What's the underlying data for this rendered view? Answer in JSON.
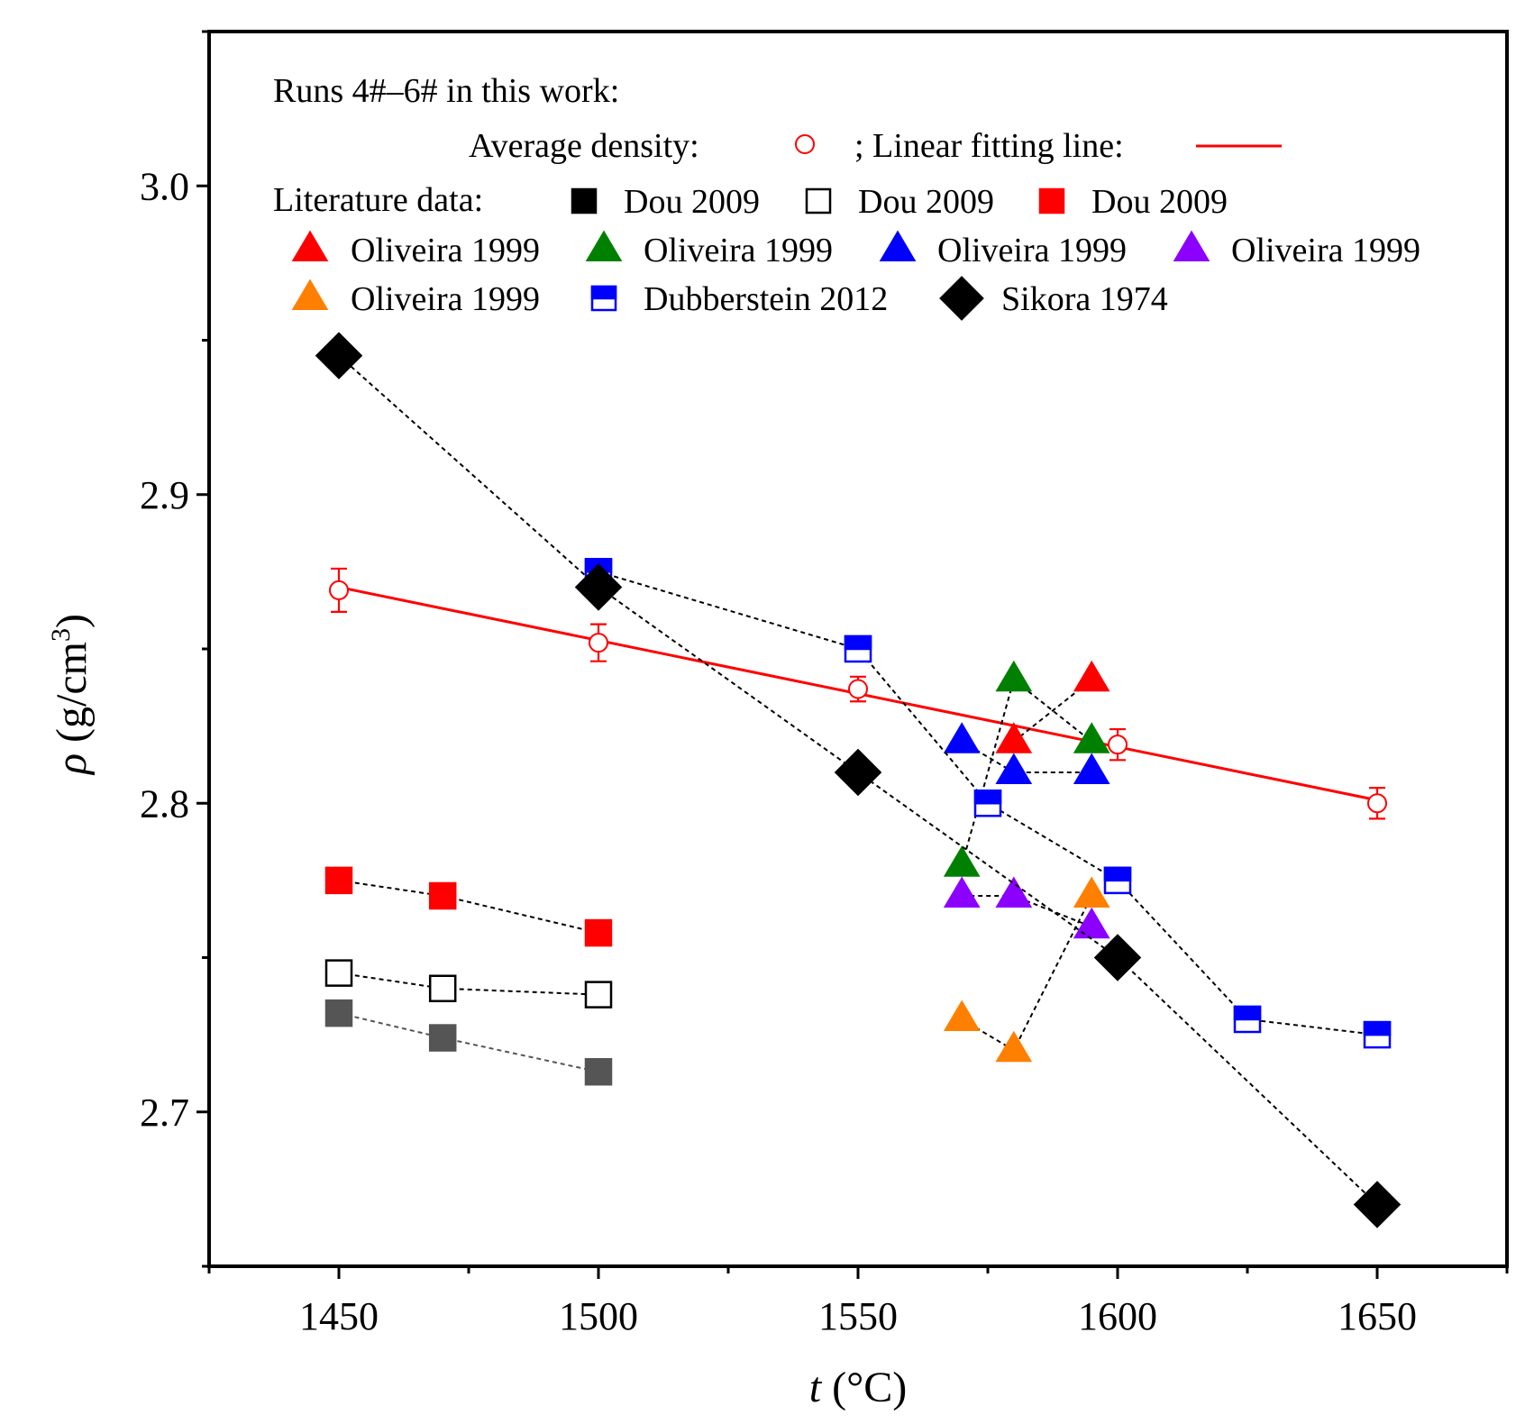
{
  "chart_data": {
    "type": "scatter",
    "xlabel": {
      "italic": "t",
      "rest": " (°C)"
    },
    "ylabel": {
      "italic": "ρ",
      "rest": " (g/cm",
      "sup": "3",
      "close": ")"
    },
    "xlim": [
      1425,
      1675
    ],
    "ylim": [
      2.65,
      3.05
    ],
    "xticks": [
      1450,
      1500,
      1550,
      1600,
      1650
    ],
    "xtick_labels": [
      "1450",
      "1500",
      "1550",
      "1600",
      "1650"
    ],
    "yticks": [
      2.7,
      2.8,
      2.9,
      3.0
    ],
    "ytick_labels": [
      "2.7",
      "2.8",
      "2.9",
      "3.0"
    ],
    "legend": {
      "header": "Runs 4#–6# in this work:",
      "avg_label": "Average density:",
      "fit_label": "; Linear fitting line:",
      "lit_label": "Literature data:",
      "entries": [
        {
          "label": "Dou 2009",
          "marker": "square",
          "color": "#000000",
          "fill": "filled"
        },
        {
          "label": "Dou 2009",
          "marker": "square",
          "color": "#000000",
          "fill": "open"
        },
        {
          "label": "Dou 2009",
          "marker": "square",
          "color": "#ff0000",
          "fill": "filled"
        },
        {
          "label": "Oliveira 1999",
          "marker": "triangle",
          "color": "#ff0000",
          "fill": "filled"
        },
        {
          "label": "Oliveira 1999",
          "marker": "triangle",
          "color": "#008000",
          "fill": "filled"
        },
        {
          "label": "Oliveira 1999",
          "marker": "triangle",
          "color": "#0000ff",
          "fill": "filled"
        },
        {
          "label": "Oliveira 1999",
          "marker": "triangle",
          "color": "#8b00ff",
          "fill": "filled"
        },
        {
          "label": "Oliveira 1999",
          "marker": "triangle",
          "color": "#ff8000",
          "fill": "filled"
        },
        {
          "label": "Dubberstein 2012",
          "marker": "square",
          "color": "#0000ff",
          "fill": "half"
        },
        {
          "label": "Sikora 1974",
          "marker": "diamond",
          "color": "#000000",
          "fill": "filled"
        }
      ]
    },
    "this_work": {
      "name": "Average density (Runs 4#–6#)",
      "color": "#ff0000",
      "points": [
        {
          "x": 1450,
          "y": 2.869,
          "err": 0.007
        },
        {
          "x": 1500,
          "y": 2.852,
          "err": 0.006
        },
        {
          "x": 1550,
          "y": 2.837,
          "err": 0.004
        },
        {
          "x": 1600,
          "y": 2.819,
          "err": 0.005
        },
        {
          "x": 1650,
          "y": 2.8,
          "err": 0.005
        }
      ],
      "fit": {
        "x": [
          1450,
          1650
        ],
        "y": [
          2.87,
          2.801
        ]
      }
    },
    "series": [
      {
        "name": "Dou 2009",
        "marker": "square",
        "fill": "filled",
        "color": "#555555",
        "line_color": "#555555",
        "x": [
          1450,
          1470,
          1500
        ],
        "y": [
          2.732,
          2.724,
          2.713
        ]
      },
      {
        "name": "Dou 2009",
        "marker": "square",
        "fill": "open",
        "color": "#000000",
        "line_color": "#000000",
        "x": [
          1450,
          1470,
          1500
        ],
        "y": [
          2.745,
          2.74,
          2.738
        ]
      },
      {
        "name": "Dou 2009",
        "marker": "square",
        "fill": "filled",
        "color": "#ff0000",
        "line_color": "#000000",
        "x": [
          1450,
          1470,
          1500
        ],
        "y": [
          2.775,
          2.77,
          2.758
        ]
      },
      {
        "name": "Oliveira 1999",
        "marker": "triangle",
        "fill": "filled",
        "color": "#ff0000",
        "line_color": "#000000",
        "x": [
          1580,
          1595
        ],
        "y": [
          2.82,
          2.84
        ]
      },
      {
        "name": "Oliveira 1999",
        "marker": "triangle",
        "fill": "filled",
        "color": "#008000",
        "line_color": "#000000",
        "x": [
          1570,
          1580,
          1595
        ],
        "y": [
          2.78,
          2.84,
          2.82
        ]
      },
      {
        "name": "Oliveira 1999",
        "marker": "triangle",
        "fill": "filled",
        "color": "#0000ff",
        "line_color": "#000000",
        "x": [
          1570,
          1580,
          1595
        ],
        "y": [
          2.82,
          2.81,
          2.81
        ]
      },
      {
        "name": "Oliveira 1999",
        "marker": "triangle",
        "fill": "filled",
        "color": "#8b00ff",
        "line_color": "#000000",
        "x": [
          1570,
          1580,
          1595
        ],
        "y": [
          2.77,
          2.77,
          2.76
        ]
      },
      {
        "name": "Oliveira 1999",
        "marker": "triangle",
        "fill": "filled",
        "color": "#ff8000",
        "line_color": "#000000",
        "x": [
          1570,
          1580,
          1595
        ],
        "y": [
          2.73,
          2.72,
          2.77
        ]
      },
      {
        "name": "Dubberstein 2012",
        "marker": "square",
        "fill": "half",
        "color": "#0000ff",
        "line_color": "#000000",
        "x": [
          1500,
          1550,
          1575,
          1600,
          1625,
          1650
        ],
        "y": [
          2.875,
          2.85,
          2.8,
          2.775,
          2.73,
          2.725
        ]
      },
      {
        "name": "Sikora 1974",
        "marker": "diamond",
        "fill": "filled",
        "color": "#000000",
        "line_color": "#000000",
        "x": [
          1450,
          1500,
          1550,
          1600,
          1650
        ],
        "y": [
          2.945,
          2.87,
          2.81,
          2.75,
          2.67
        ]
      }
    ]
  }
}
